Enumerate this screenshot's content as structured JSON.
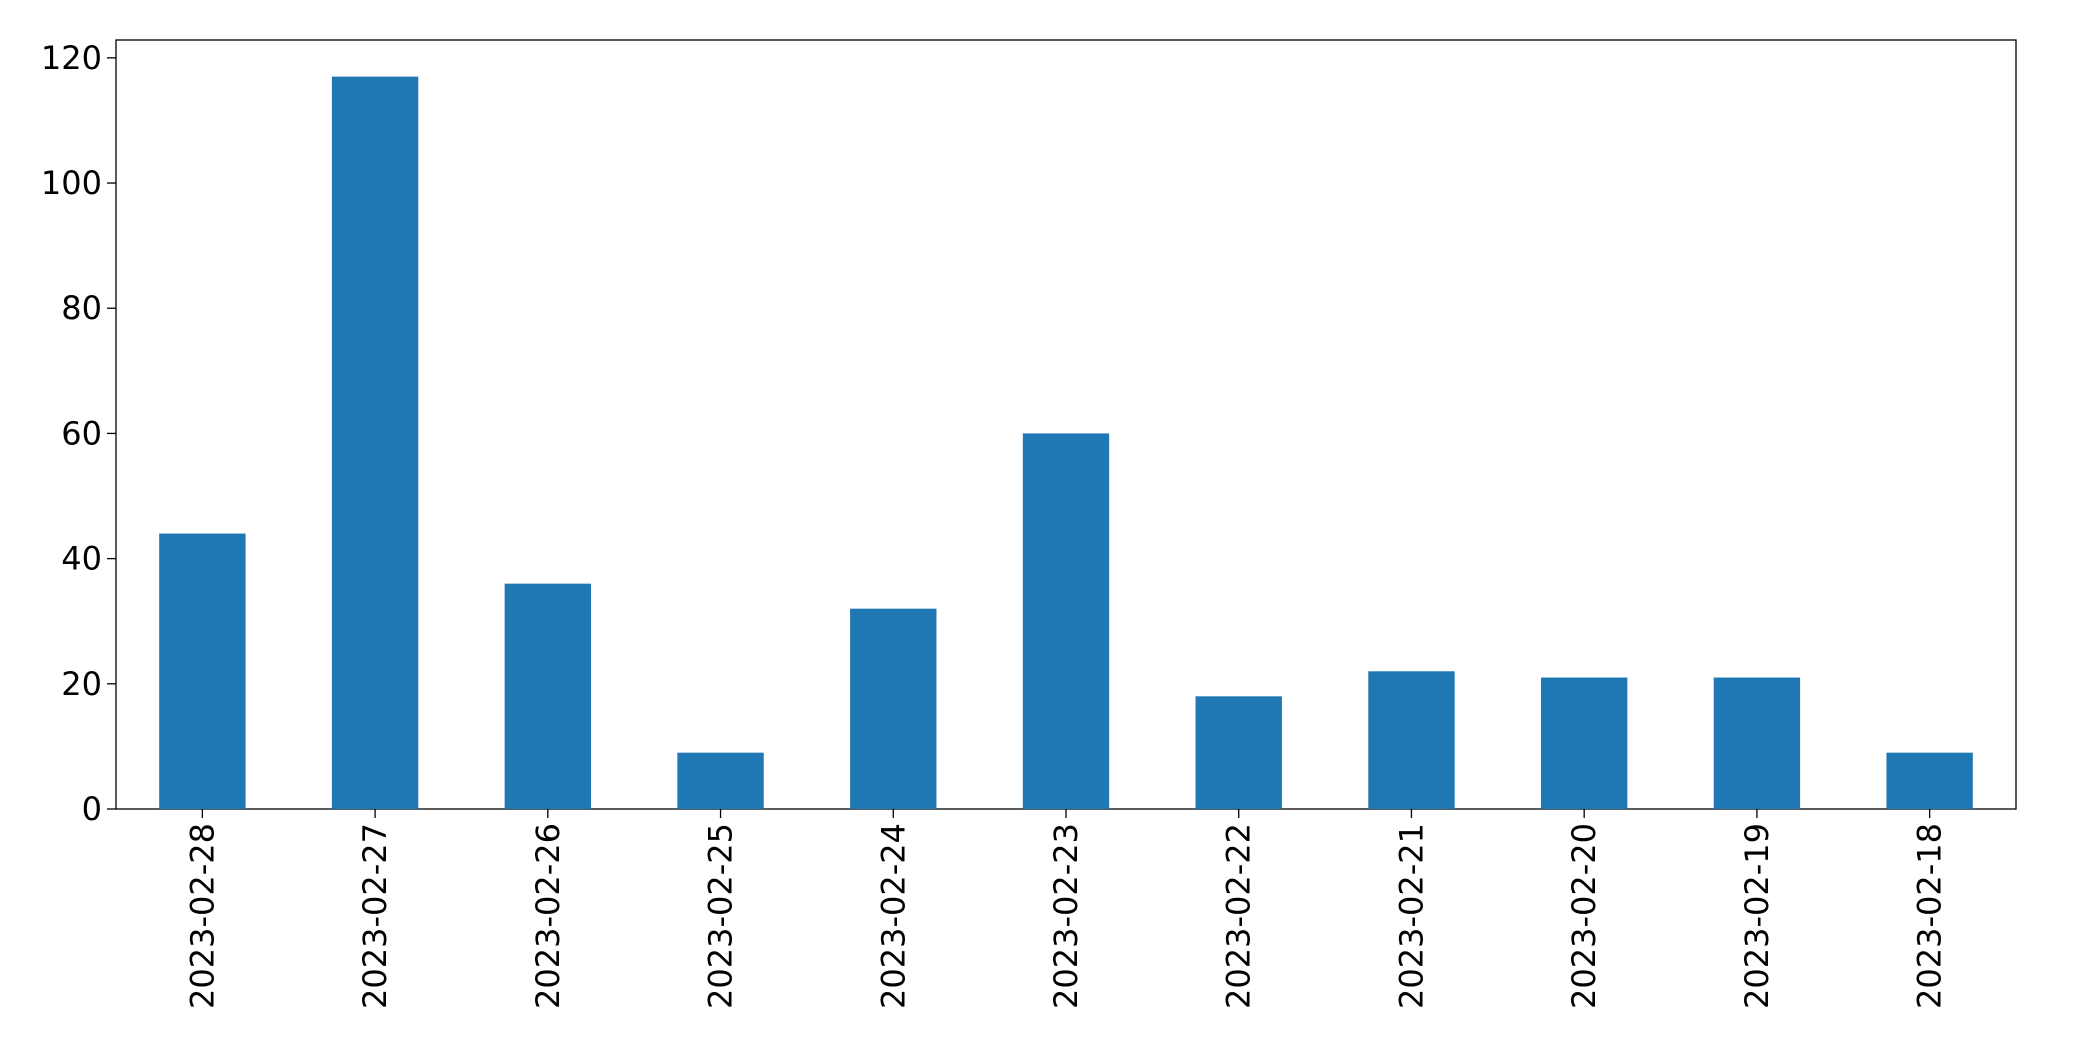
{
  "chart_data": {
    "type": "bar",
    "categories": [
      "2023-02-28",
      "2023-02-27",
      "2023-02-26",
      "2023-02-25",
      "2023-02-24",
      "2023-02-23",
      "2023-02-22",
      "2023-02-21",
      "2023-02-20",
      "2023-02-19",
      "2023-02-18"
    ],
    "values": [
      44,
      117,
      36,
      9,
      32,
      60,
      18,
      22,
      21,
      21,
      9
    ],
    "color": "#1f77b4",
    "ylim": [
      0,
      122.85
    ],
    "yticks": [
      0,
      20,
      40,
      60,
      80,
      100,
      120
    ],
    "grid": false
  }
}
